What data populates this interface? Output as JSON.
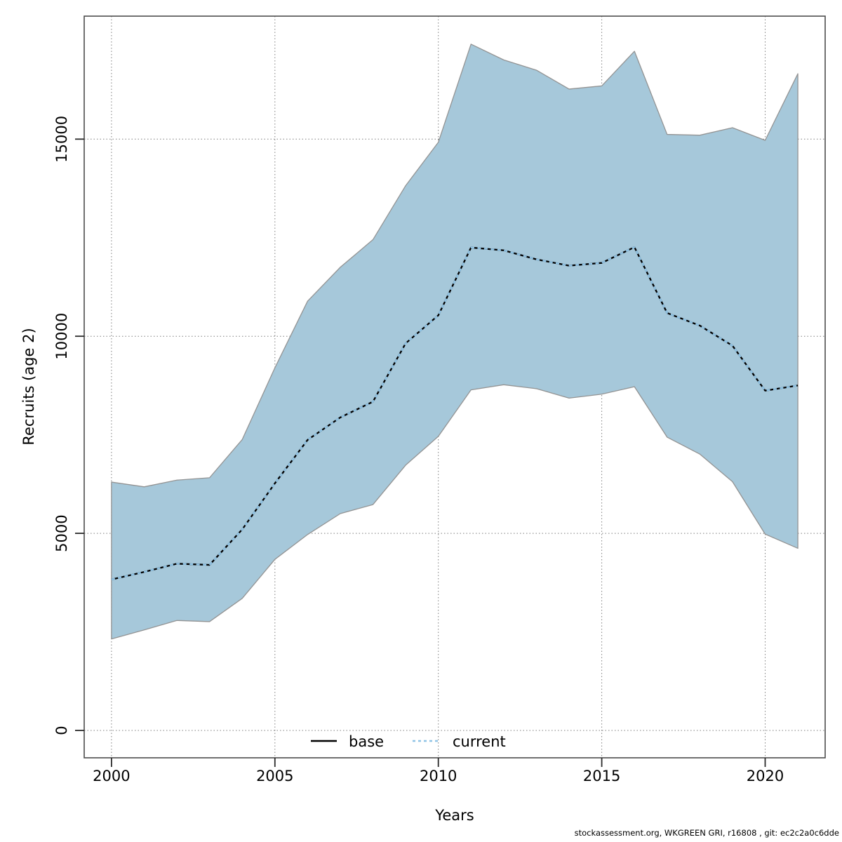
{
  "chart_data": {
    "type": "area",
    "title": "",
    "xlabel": "Years",
    "ylabel": "Recruits (age 2)",
    "grid": "dotted",
    "x": [
      2000,
      2001,
      2002,
      2003,
      2004,
      2005,
      2006,
      2007,
      2008,
      2009,
      2010,
      2011,
      2012,
      2013,
      2014,
      2015,
      2016,
      2017,
      2018,
      2019,
      2020,
      2021
    ],
    "xticks": [
      2000,
      2005,
      2010,
      2015,
      2020
    ],
    "yticks": [
      0,
      5000,
      10000,
      15000
    ],
    "xlim": [
      1999.16,
      2021.83
    ],
    "ylim": [
      -694,
      18120
    ],
    "series": [
      {
        "name": "base",
        "line_style": "solid",
        "color": "#000000",
        "values": [
          3830,
          4020,
          4230,
          4200,
          5100,
          6270,
          7370,
          7940,
          8340,
          9820,
          10530,
          12250,
          12180,
          11950,
          11790,
          11860,
          12260,
          10590,
          10270,
          9760,
          8620,
          8750
        ]
      },
      {
        "name": "current",
        "line_style": "dashed",
        "color": "#90C4E6",
        "values": [
          3830,
          4020,
          4230,
          4200,
          5100,
          6270,
          7370,
          7940,
          8340,
          9820,
          10530,
          12250,
          12180,
          11950,
          11790,
          11860,
          12260,
          10590,
          10270,
          9760,
          8620,
          8750
        ]
      }
    ],
    "band": {
      "fill": "#A6C8DA",
      "edge": "#939393",
      "lower": [
        2320,
        2550,
        2790,
        2760,
        3350,
        4340,
        4970,
        5500,
        5730,
        6730,
        7460,
        8640,
        8770,
        8670,
        8430,
        8530,
        8720,
        7440,
        7010,
        6310,
        4980,
        4620
      ],
      "upper": [
        6300,
        6180,
        6350,
        6410,
        7380,
        9200,
        10890,
        11750,
        12450,
        13820,
        14920,
        17410,
        17010,
        16750,
        16270,
        16350,
        17230,
        15120,
        15100,
        15290,
        14970,
        16660
      ]
    },
    "legend": {
      "position": "bottom-center-inside",
      "entries": [
        "base",
        "current"
      ]
    }
  },
  "footer": {
    "credit": "stockassessment.org, WKGREEN GRI, r16808 , git: ec2c2a0c6dde"
  }
}
